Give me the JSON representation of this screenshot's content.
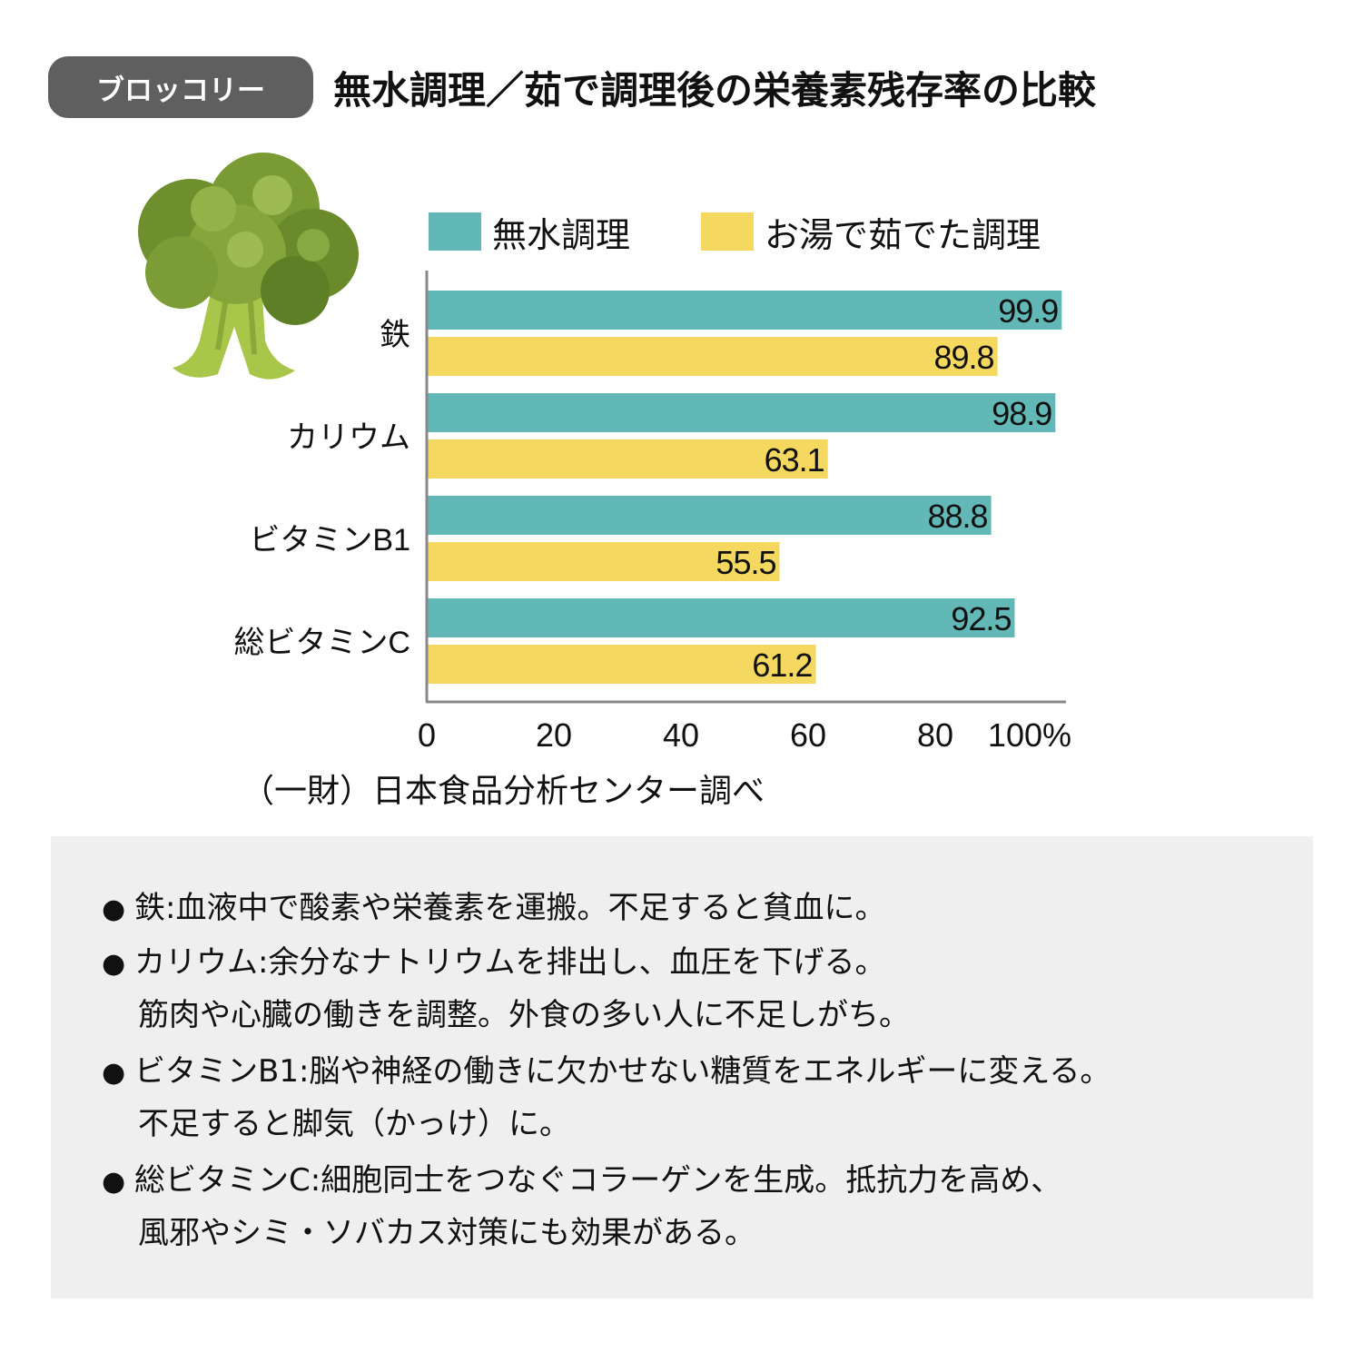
{
  "header": {
    "tag": "ブロッコリー",
    "title": "無水調理／茹で調理後の栄養素残存率の比較"
  },
  "colors": {
    "series_1": "#62b8b6",
    "series_2": "#f5d85f",
    "header_tag_bg": "#5f5f5f",
    "notes_bg": "#efefef"
  },
  "illustration": {
    "icon": "broccoli-illustration"
  },
  "chart_data": {
    "type": "bar",
    "orientation": "horizontal",
    "categories": [
      "鉄",
      "カリウム",
      "ビタミンB1",
      "総ビタミンC"
    ],
    "series": [
      {
        "name": "無水調理",
        "values": [
          99.9,
          98.9,
          88.8,
          92.5
        ],
        "labels": [
          "99.9",
          "98.9",
          "88.8",
          "92.5"
        ]
      },
      {
        "name": "お湯で茹でた調理",
        "values": [
          89.8,
          63.1,
          55.5,
          61.2
        ],
        "labels": [
          "89.8",
          "63.1",
          "55.5",
          "61.2"
        ]
      }
    ],
    "xlim": [
      0,
      100
    ],
    "x_ticks": [
      "0",
      "20",
      "40",
      "60",
      "80",
      "100%"
    ],
    "legend_position": "top",
    "grid": false
  },
  "source_note": "（一財）日本食品分析センター調べ",
  "notes": [
    {
      "bullet": "●",
      "lines": [
        "鉄:血液中で酸素や栄養素を運搬。不足すると貧血に。"
      ]
    },
    {
      "bullet": "●",
      "lines": [
        "カリウム:余分なナトリウムを排出し、血圧を下げる。",
        "筋肉や心臓の働きを調整。外食の多い人に不足しがち。"
      ]
    },
    {
      "bullet": "●",
      "lines": [
        "ビタミンB1:脳や神経の働きに欠かせない糖質をエネルギーに変える。",
        "不足すると脚気（かっけ）に。"
      ]
    },
    {
      "bullet": "●",
      "lines": [
        "総ビタミンC:細胞同士をつなぐコラーゲンを生成。抵抗力を高め、",
        "風邪やシミ・ソバカス対策にも効果がある。"
      ]
    }
  ]
}
